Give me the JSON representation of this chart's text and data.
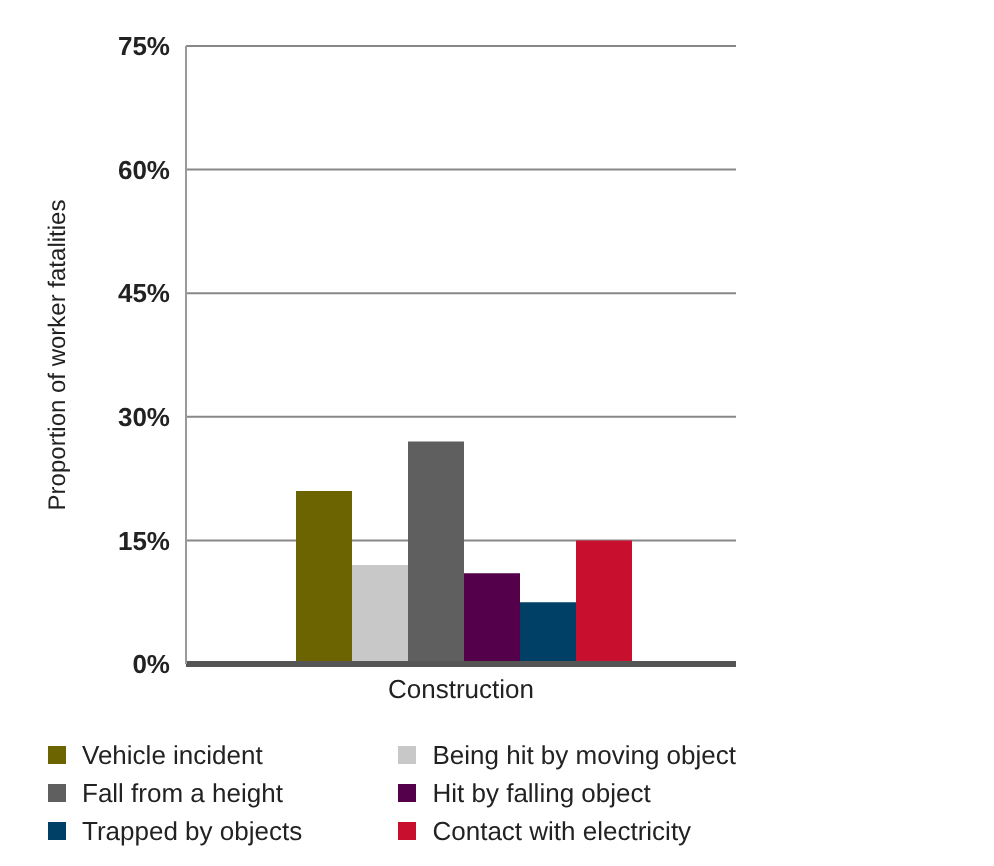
{
  "chart_data": {
    "type": "bar",
    "ylabel": "Proportion of worker fatalities",
    "categories": [
      "Construction"
    ],
    "series": [
      {
        "name": "Vehicle incident",
        "color": "#6b6400",
        "values": [
          21
        ]
      },
      {
        "name": "Being hit by moving object",
        "color": "#c8c8c8",
        "values": [
          12
        ]
      },
      {
        "name": "Fall from a height",
        "color": "#5f5f5f",
        "values": [
          27
        ]
      },
      {
        "name": "Hit by falling object",
        "color": "#55004a",
        "values": [
          11
        ]
      },
      {
        "name": "Trapped by objects",
        "color": "#003f66",
        "values": [
          7.5
        ]
      },
      {
        "name": "Contact with electricity",
        "color": "#c8102e",
        "values": [
          15
        ]
      }
    ],
    "ylim": [
      0,
      75
    ],
    "yticks": [
      {
        "value": 0,
        "label": "0%"
      },
      {
        "value": 15,
        "label": "15%"
      },
      {
        "value": 30,
        "label": "30%"
      },
      {
        "value": 45,
        "label": "45%"
      },
      {
        "value": 60,
        "label": "60%"
      },
      {
        "value": 75,
        "label": "75%"
      }
    ],
    "grid": "y",
    "legend": "bottom"
  }
}
